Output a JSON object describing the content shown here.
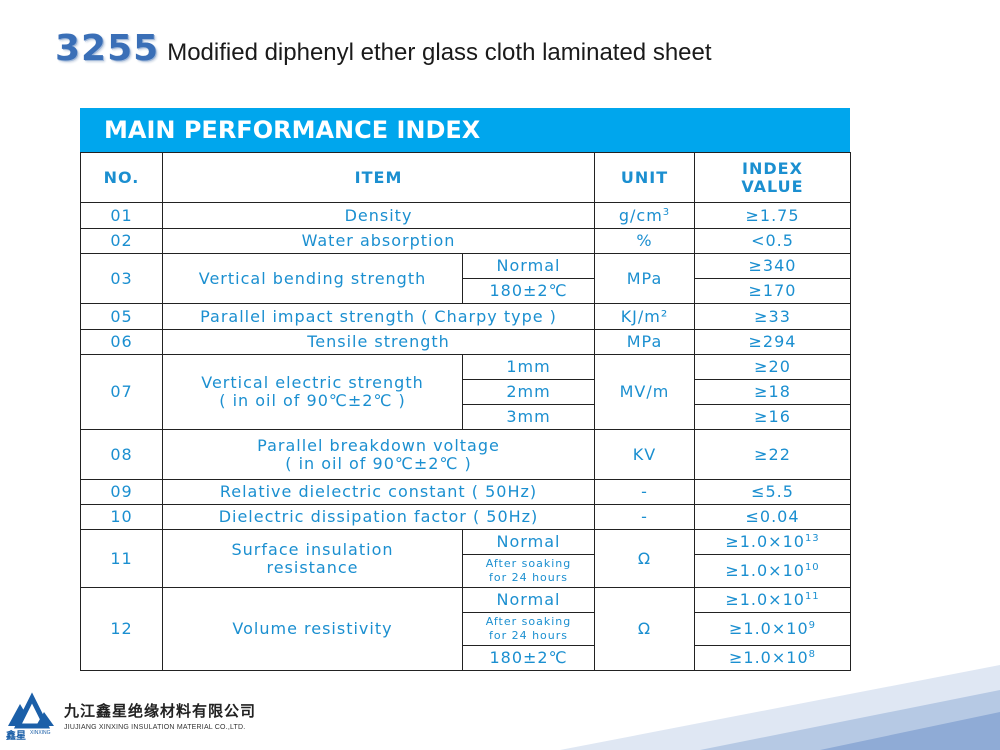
{
  "title": {
    "code": "3255",
    "text": "Modified diphenyl ether glass cloth laminated sheet"
  },
  "banner": "MAIN PERFORMANCE INDEX",
  "table": {
    "headers": {
      "no": "NO.",
      "item": "ITEM",
      "unit": "UNIT",
      "value_line1": "INDEX",
      "value_line2": "VALUE"
    },
    "rows": {
      "r01": {
        "no": "01",
        "item": "Density",
        "unit_base": "g/cm",
        "unit_sup": "3",
        "value": "≥1.75"
      },
      "r02": {
        "no": "02",
        "item": "Water absorption",
        "unit": "%",
        "value": "<0.5"
      },
      "r03": {
        "no": "03",
        "item": "Vertical bending strength",
        "cond1": "Normal",
        "cond2": "180±2℃",
        "unit": "MPa",
        "value1": "≥340",
        "value2": "≥170"
      },
      "r05": {
        "no": "05",
        "item": "Parallel impact strength ( Charpy type )",
        "unit": "KJ/m²",
        "value": "≥33"
      },
      "r06": {
        "no": "06",
        "item": "Tensile strength",
        "unit": "MPa",
        "value": "≥294"
      },
      "r07": {
        "no": "07",
        "item_line1": "Vertical electric strength",
        "item_line2": "( in oil of 90℃±2℃ )",
        "cond1": "1mm",
        "cond2": "2mm",
        "cond3": "3mm",
        "unit": "MV/m",
        "value1": "≥20",
        "value2": "≥18",
        "value3": "≥16"
      },
      "r08": {
        "no": "08",
        "item_line1": "Parallel breakdown voltage",
        "item_line2": "( in oil of 90℃±2℃ )",
        "unit": "KV",
        "value": "≥22"
      },
      "r09": {
        "no": "09",
        "item": "Relative dielectric constant ( 50Hz)",
        "unit": "-",
        "value": "≤5.5"
      },
      "r10": {
        "no": "10",
        "item": "Dielectric dissipation factor ( 50Hz)",
        "unit": "-",
        "value": "≤0.04"
      },
      "r11": {
        "no": "11",
        "item_line1": "Surface insulation",
        "item_line2": "resistance",
        "cond1": "Normal",
        "cond2_line1": "After soaking",
        "cond2_line2": "for 24 hours",
        "unit": "Ω",
        "value1_base": "≥1.0×10",
        "value1_exp": "13",
        "value2_base": "≥1.0×10",
        "value2_exp": "10"
      },
      "r12": {
        "no": "12",
        "item": "Volume resistivity",
        "cond1": "Normal",
        "cond2_line1": "After soaking",
        "cond2_line2": "for 24 hours",
        "cond3": "180±2℃",
        "unit": "Ω",
        "value1_base": "≥1.0×10",
        "value1_exp": "11",
        "value2_base": "≥1.0×10",
        "value2_exp": "9",
        "value3_base": "≥1.0×10",
        "value3_exp": "8"
      }
    }
  },
  "footer": {
    "company_cn": "九江鑫星绝缘材料有限公司",
    "company_en": "JIUJIANG XINXING INSULATION MATERIAL CO.,LTD.",
    "brand_cn": "鑫星",
    "brand_en": "XINXING"
  },
  "colors": {
    "banner": "#00a6ed",
    "table_text": "#1b8fd0",
    "title_code": "#3a6fb7",
    "corner_accent": "#9db4d8"
  }
}
